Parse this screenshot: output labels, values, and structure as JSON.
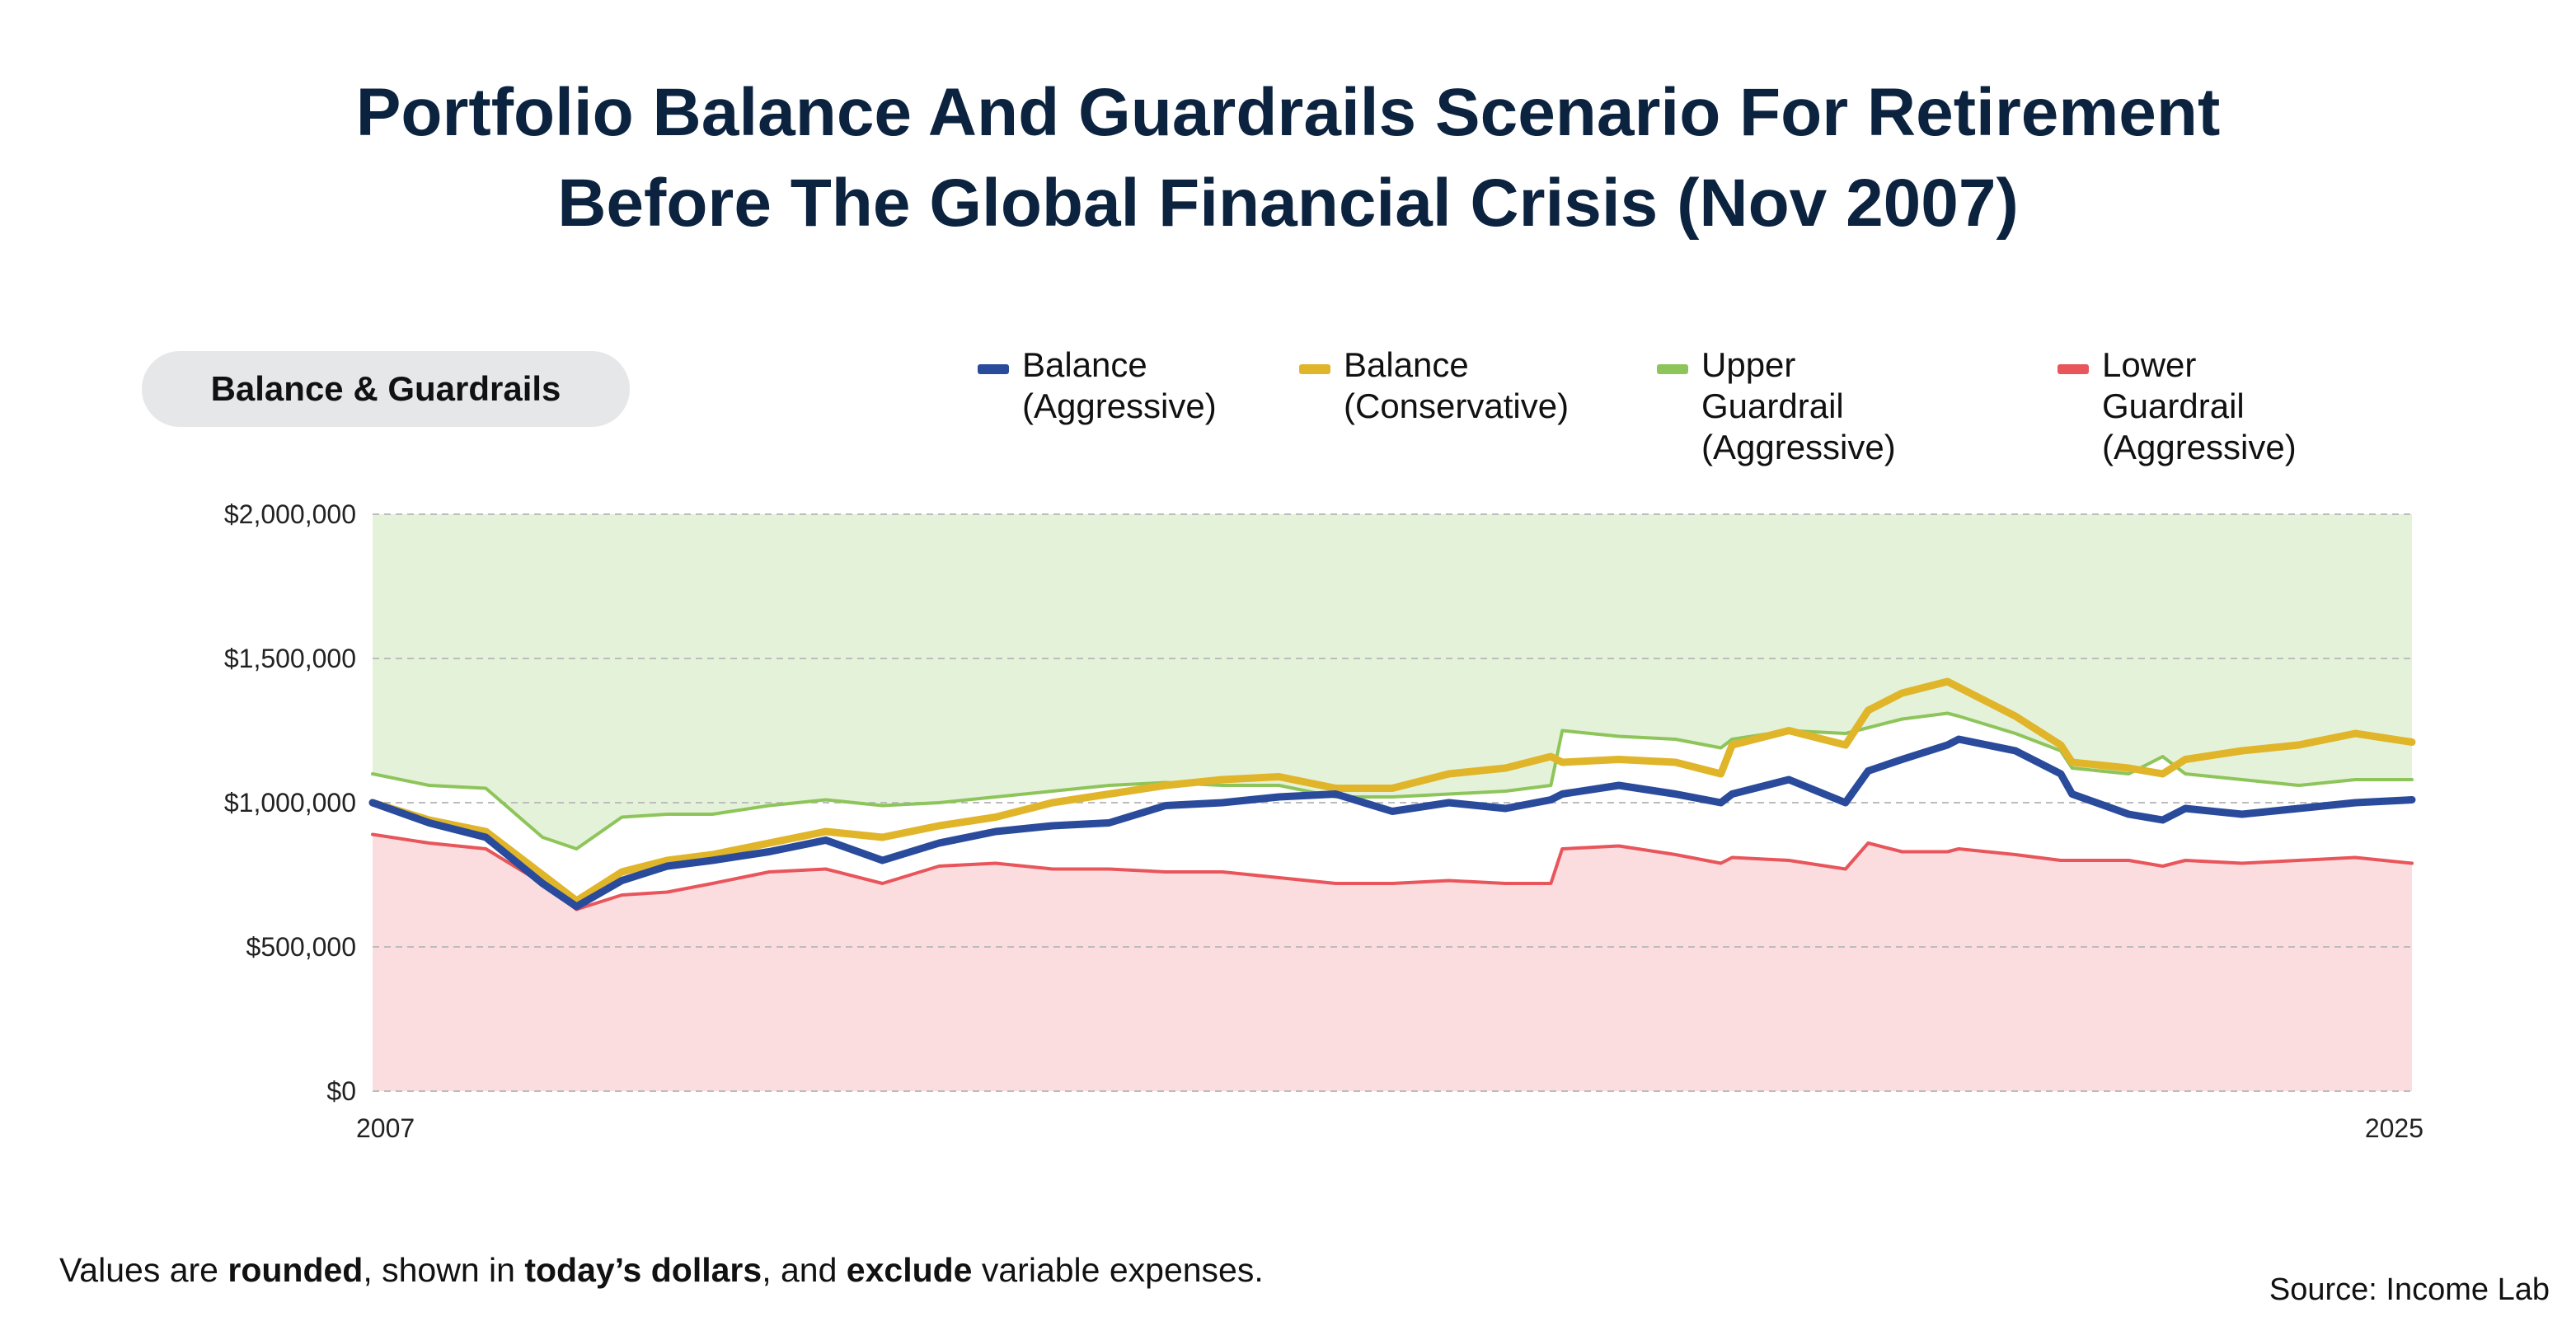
{
  "title": {
    "line1": "Portfolio Balance And Guardrails Scenario For Retirement",
    "line2": "Before The Global Financial Crisis (Nov 2007)"
  },
  "pill_label": "Balance & Guardrails",
  "legend": [
    {
      "line1": "Balance",
      "line2": "(Aggressive)",
      "color": "#2a4b9b"
    },
    {
      "line1": "Balance",
      "line2": "(Conservative)",
      "color": "#e0b52a"
    },
    {
      "line1": "Upper Guardrail",
      "line2": "(Aggressive)",
      "color": "#8dc55a"
    },
    {
      "line1": "Lower Guardrail",
      "line2": "(Aggressive)",
      "color": "#e8555a"
    }
  ],
  "footnote": {
    "p1": "Values are ",
    "b1": "rounded",
    "p2": ", shown in ",
    "b2": "today’s dollars",
    "p3": ", and ",
    "b3": "exclude",
    "p4": " variable expenses."
  },
  "source": "Source: Income Lab",
  "chart_data": {
    "type": "line",
    "y_tick_labels": [
      "$0",
      "$500,000",
      "$1,000,000",
      "$1,500,000",
      "$2,000,000"
    ],
    "y_ticks": [
      0,
      500000,
      1000000,
      1500000,
      2000000
    ],
    "x_tick_labels": [
      "2007",
      "2025"
    ],
    "xlim": [
      2007,
      2025
    ],
    "ylim": [
      0,
      2000000
    ],
    "grid": "horizontal dashed",
    "legend_position": "top",
    "colors": {
      "upper_fill": "#e5f2da",
      "lower_fill": "#fbdde0",
      "grid": "#bcbcbc"
    },
    "x": [
      2007.0,
      2007.5,
      2008.0,
      2008.5,
      2008.8,
      2009.2,
      2009.6,
      2010.0,
      2010.5,
      2011.0,
      2011.5,
      2012.0,
      2012.5,
      2013.0,
      2013.5,
      2014.0,
      2014.5,
      2015.0,
      2015.5,
      2016.0,
      2016.5,
      2017.0,
      2017.4,
      2017.5,
      2018.0,
      2018.5,
      2018.9,
      2019.0,
      2019.5,
      2020.0,
      2020.2,
      2020.5,
      2020.9,
      2021.0,
      2021.5,
      2021.9,
      2022.0,
      2022.5,
      2022.8,
      2023.0,
      2023.5,
      2024.0,
      2024.5,
      2025.0
    ],
    "series": [
      {
        "name": "Balance (Aggressive)",
        "color": "#2a4b9b",
        "values": [
          1000000,
          930000,
          880000,
          720000,
          640000,
          730000,
          780000,
          800000,
          830000,
          870000,
          800000,
          860000,
          900000,
          920000,
          930000,
          990000,
          1000000,
          1020000,
          1030000,
          970000,
          1000000,
          980000,
          1010000,
          1030000,
          1060000,
          1030000,
          1000000,
          1030000,
          1080000,
          1000000,
          1110000,
          1150000,
          1200000,
          1220000,
          1180000,
          1100000,
          1030000,
          960000,
          940000,
          980000,
          960000,
          980000,
          1000000,
          1010000
        ]
      },
      {
        "name": "Balance (Conservative)",
        "color": "#e0b52a",
        "values": [
          1000000,
          940000,
          900000,
          750000,
          660000,
          760000,
          800000,
          820000,
          860000,
          900000,
          880000,
          920000,
          950000,
          1000000,
          1030000,
          1060000,
          1080000,
          1090000,
          1050000,
          1050000,
          1100000,
          1120000,
          1160000,
          1140000,
          1150000,
          1140000,
          1100000,
          1200000,
          1250000,
          1200000,
          1320000,
          1380000,
          1420000,
          1400000,
          1300000,
          1200000,
          1140000,
          1120000,
          1100000,
          1150000,
          1180000,
          1200000,
          1240000,
          1210000
        ]
      },
      {
        "name": "Upper Guardrail (Aggressive)",
        "color": "#8dc55a",
        "values": [
          1100000,
          1060000,
          1050000,
          880000,
          840000,
          950000,
          960000,
          960000,
          990000,
          1010000,
          990000,
          1000000,
          1020000,
          1040000,
          1060000,
          1070000,
          1060000,
          1060000,
          1020000,
          1020000,
          1030000,
          1040000,
          1060000,
          1250000,
          1230000,
          1220000,
          1190000,
          1220000,
          1250000,
          1240000,
          1260000,
          1290000,
          1310000,
          1300000,
          1240000,
          1180000,
          1120000,
          1100000,
          1160000,
          1100000,
          1080000,
          1060000,
          1080000,
          1080000
        ]
      },
      {
        "name": "Lower Guardrail (Aggressive)",
        "color": "#e8555a",
        "values": [
          890000,
          860000,
          840000,
          720000,
          630000,
          680000,
          690000,
          720000,
          760000,
          770000,
          720000,
          780000,
          790000,
          770000,
          770000,
          760000,
          760000,
          740000,
          720000,
          720000,
          730000,
          720000,
          720000,
          840000,
          850000,
          820000,
          790000,
          810000,
          800000,
          770000,
          860000,
          830000,
          830000,
          840000,
          820000,
          800000,
          800000,
          800000,
          780000,
          800000,
          790000,
          800000,
          810000,
          790000
        ]
      }
    ]
  }
}
